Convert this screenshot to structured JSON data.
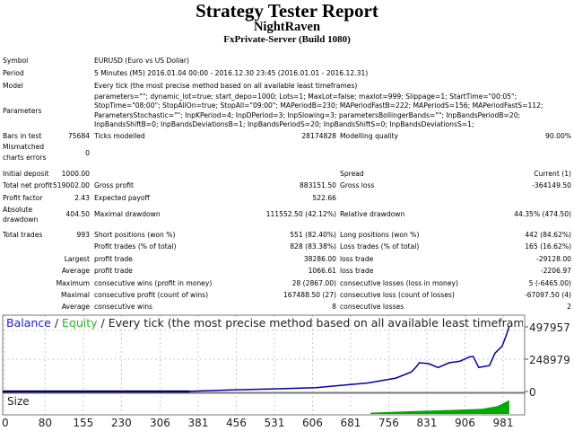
{
  "header": {
    "title": "Strategy Tester Report",
    "expert": "NightRaven",
    "server": "FxPrivate-Server (Build 1080)"
  },
  "info": {
    "symbol_label": "Symbol",
    "symbol": "EURUSD (Euro vs US Dollar)",
    "period_label": "Period",
    "period": "5 Minutes (M5) 2016.01.04 00:00 - 2016.12.30 23:45 (2016.01.01 - 2016.12.31)",
    "model_label": "Model",
    "model": "Every tick (the most precise method based on all available least timeframes)",
    "parameters_label": "Parameters",
    "parameters": "parameters=\"\"; dynamic_lot=true; start_depo=1000; Lots=1; MaxLot=false; maxlot=999; Slippage=1; StartTime=\"00:05\"; StopTime=\"08:00\"; StopAllOn=true; StopAll=\"09:00\"; MAPeriodB=230; MAPeriodFastB=222; MAPeriodS=156; MAPeriodFastS=112; ParametersStochastic=\"\"; InpKPeriod=4; InpDPeriod=3; InpSlowing=3; parametersBollingerBands=\"\"; InpBandsPeriodB=20; InpBandsShiftB=0; InpBandsDeviationsB=1; InpBandsPeriodS=20; InpBandsShiftS=0; InpBandsDeviationsS=1;",
    "bars_label": "Bars in test",
    "bars": "75684",
    "ticks_label": "Ticks modelled",
    "ticks": "28174828",
    "quality_label": "Modelling quality",
    "quality": "90.00%",
    "mismatch_label": "Mismatched charts errors",
    "mismatch": "0"
  },
  "results": {
    "initial_deposit_label": "Initial deposit",
    "initial_deposit": "1000.00",
    "spread_label": "Spread",
    "spread": "Current (1)",
    "net_profit_label": "Total net profit",
    "net_profit": "519002.00",
    "gross_profit_label": "Gross profit",
    "gross_profit": "883151.50",
    "gross_loss_label": "Gross loss",
    "gross_loss": "-364149.50",
    "profit_factor_label": "Profit factor",
    "profit_factor": "2.43",
    "expected_payoff_label": "Expected payoff",
    "expected_payoff": "522.66",
    "abs_dd_label": "Absolute drawdown",
    "abs_dd": "404.50",
    "max_dd_label": "Maximal drawdown",
    "max_dd": "111552.50 (42.12%)",
    "rel_dd_label": "Relative drawdown",
    "rel_dd": "44.35% (474.50)",
    "total_trades_label": "Total trades",
    "total_trades": "993",
    "short_label": "Short positions (won %)",
    "short": "551 (82.40%)",
    "long_label": "Long positions (won %)",
    "long": "442 (84.62%)",
    "profit_trades_label": "Profit trades (% of total)",
    "profit_trades": "828 (83.38%)",
    "loss_trades_label": "Loss trades (% of total)",
    "loss_trades": "165 (16.62%)",
    "largest_label": "Largest",
    "largest_profit_label": "profit trade",
    "largest_profit": "38286.00",
    "largest_loss_label": "loss trade",
    "largest_loss": "-29128.00",
    "average_label": "Average",
    "average_profit_label": "profit trade",
    "average_profit": "1066.61",
    "average_loss_label": "loss trade",
    "average_loss": "-2206.97",
    "maximum_label": "Maximum",
    "max_cons_wins_label": "consecutive wins (profit in money)",
    "max_cons_wins": "28 (2867.00)",
    "max_cons_losses_label": "consecutive losses (loss in money)",
    "max_cons_losses": "5 (-6465.00)",
    "maximal_label": "Maximal",
    "maximal_profit_label": "consecutive profit (count of wins)",
    "maximal_profit": "167488.50 (27)",
    "maximal_loss_label": "consecutive loss (count of losses)",
    "maximal_loss": "-67097.50 (4)",
    "avg_cons_label": "Average",
    "avg_cons_wins_label": "consecutive wins",
    "avg_cons_wins": "8",
    "avg_cons_losses_label": "consecutive losses",
    "avg_cons_losses": "2"
  },
  "chart_data": {
    "type": "line",
    "legend_balance": "Balance",
    "legend_equity": "Equity",
    "legend_sep": " / ",
    "legend_rest": "Every tick (the most precise method based on all available least timeframes to generat",
    "size_label": "Size",
    "colors": {
      "balance": "#0000aa",
      "equity": "#00bb00",
      "size": "#00aa00",
      "grid": "#c8c8c8"
    },
    "xlim": [
      0,
      993
    ],
    "ylim": [
      0,
      580000
    ],
    "y_ticks": [
      0,
      248979,
      497957
    ],
    "x_ticks": [
      0,
      80,
      155,
      230,
      306,
      381,
      456,
      531,
      606,
      681,
      756,
      831,
      906,
      981
    ],
    "balance": [
      [
        0,
        1000
      ],
      [
        364,
        2000
      ],
      [
        447,
        12000
      ],
      [
        530,
        20000
      ],
      [
        613,
        30000
      ],
      [
        715,
        66000
      ],
      [
        770,
        103000
      ],
      [
        800,
        150000
      ],
      [
        809,
        185000
      ],
      [
        816,
        221000
      ],
      [
        834,
        215000
      ],
      [
        853,
        185000
      ],
      [
        875,
        221000
      ],
      [
        896,
        233000
      ],
      [
        915,
        266000
      ],
      [
        922,
        270000
      ],
      [
        933,
        185000
      ],
      [
        954,
        200000
      ],
      [
        965,
        295000
      ],
      [
        979,
        350000
      ],
      [
        987,
        430000
      ],
      [
        993,
        505000
      ]
    ],
    "size": [
      [
        720,
        0.6
      ],
      [
        760,
        1
      ],
      [
        800,
        1.4
      ],
      [
        850,
        1.8
      ],
      [
        900,
        2.2
      ],
      [
        940,
        2.6
      ],
      [
        970,
        4
      ],
      [
        993,
        7
      ]
    ]
  }
}
